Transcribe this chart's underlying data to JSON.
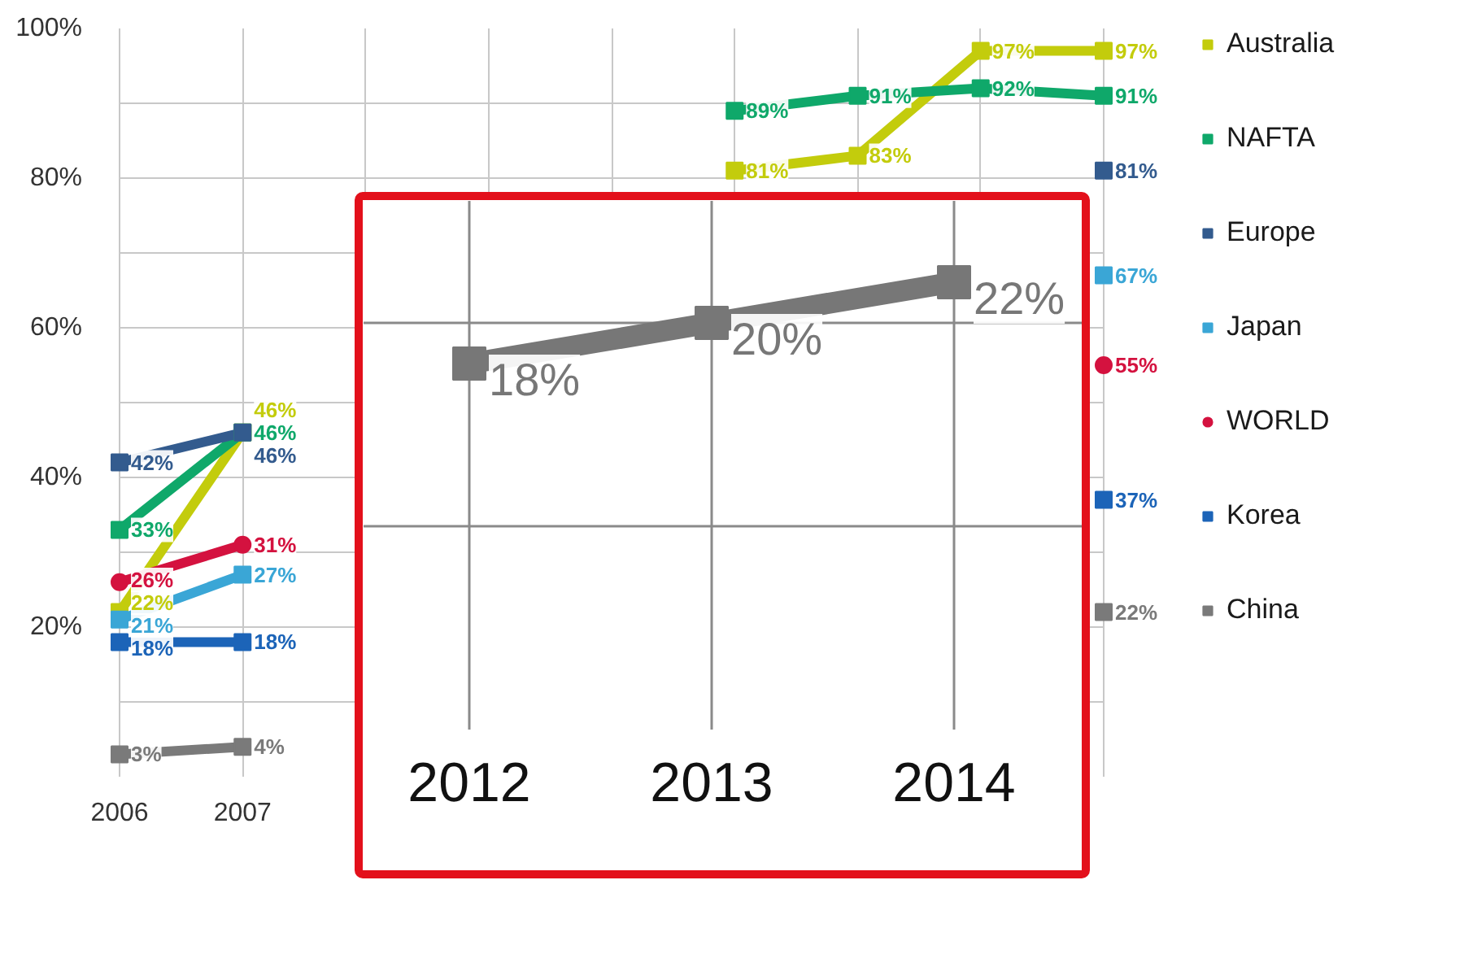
{
  "chart_data": [
    {
      "type": "line",
      "categories": [
        "2006",
        "2007",
        null,
        null,
        null,
        null,
        null,
        null,
        null
      ],
      "ylim": [
        0,
        100
      ],
      "yticks": [
        {
          "value": 10,
          "label": null
        },
        {
          "value": 20,
          "label": "20%"
        },
        {
          "value": 30,
          "label": null
        },
        {
          "value": 40,
          "label": "40%"
        },
        {
          "value": 50,
          "label": null
        },
        {
          "value": 60,
          "label": "60%"
        },
        {
          "value": 70,
          "label": null
        },
        {
          "value": 80,
          "label": "80%"
        },
        {
          "value": 90,
          "label": null
        },
        {
          "value": 100,
          "label": "100%"
        }
      ],
      "grid": true,
      "legend": "right",
      "marker": "square",
      "series": [
        {
          "name": "Australia",
          "color": "#c3cc0c",
          "values": [
            22,
            46,
            null,
            null,
            null,
            81,
            83,
            97,
            97
          ],
          "value_labels": [
            "22%",
            "46%",
            null,
            null,
            null,
            "81%",
            "83%",
            "97%",
            "97%"
          ]
        },
        {
          "name": "NAFTA",
          "color": "#0fa86a",
          "values": [
            33,
            46,
            null,
            null,
            null,
            89,
            91,
            92,
            91
          ],
          "value_labels": [
            "33%",
            "46%",
            null,
            null,
            null,
            "89%",
            "91%",
            "92%",
            "91%"
          ]
        },
        {
          "name": "Europe",
          "color": "#335b8e",
          "values": [
            42,
            46,
            null,
            null,
            null,
            null,
            null,
            null,
            81
          ],
          "value_labels": [
            "42%",
            "46%",
            null,
            null,
            null,
            null,
            null,
            null,
            "81%"
          ]
        },
        {
          "name": "Japan",
          "color": "#3aa6d6",
          "values": [
            21,
            27,
            null,
            null,
            null,
            null,
            null,
            null,
            67
          ],
          "value_labels": [
            "21%",
            "27%",
            null,
            null,
            null,
            null,
            null,
            null,
            "67%"
          ]
        },
        {
          "name": "WORLD",
          "color": "#d4123f",
          "marker": "circle",
          "values": [
            26,
            31,
            null,
            null,
            null,
            null,
            null,
            null,
            55
          ],
          "value_labels": [
            "26%",
            "31%",
            null,
            null,
            null,
            null,
            null,
            null,
            "55%"
          ]
        },
        {
          "name": "Korea",
          "color": "#1c64b8",
          "values": [
            18,
            18,
            null,
            null,
            null,
            null,
            null,
            null,
            37
          ],
          "value_labels": [
            "18%",
            "18%",
            null,
            null,
            null,
            null,
            null,
            null,
            "37%"
          ]
        },
        {
          "name": "China",
          "color": "#7a7a7a",
          "values": [
            3,
            4,
            null,
            null,
            null,
            null,
            null,
            null,
            22
          ],
          "value_labels": [
            "3%",
            "4%",
            null,
            null,
            null,
            null,
            null,
            null,
            "22%"
          ]
        }
      ]
    },
    {
      "type": "line",
      "categories": [
        "2012",
        "2013",
        "2014"
      ],
      "values": [
        18,
        20,
        22
      ],
      "value_labels": [
        "18%",
        "20%",
        "22%"
      ],
      "color": "#777777",
      "marker": "square",
      "ylim": [
        0,
        26
      ],
      "grid": true,
      "tick_labels": "x"
    }
  ]
}
